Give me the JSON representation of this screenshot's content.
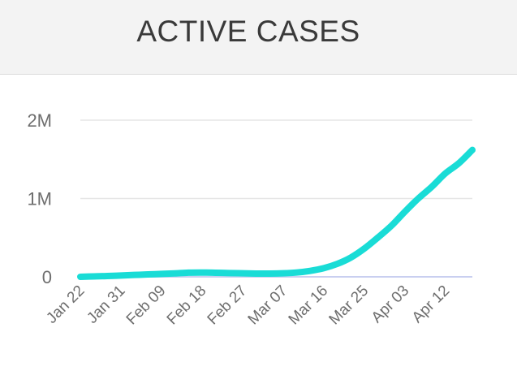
{
  "header": {
    "title": "ACTIVE CASES"
  },
  "chart_data": {
    "type": "line",
    "title": "ACTIVE CASES",
    "xlabel": "",
    "ylabel": "",
    "ylim": [
      0,
      2000000
    ],
    "grid": true,
    "legend": "none",
    "y_ticks": [
      {
        "value": 0,
        "label": "0"
      },
      {
        "value": 1000000,
        "label": "1M"
      },
      {
        "value": 2000000,
        "label": "2M"
      }
    ],
    "x_tick_labels": [
      "Jan 22",
      "Jan 31",
      "Feb 09",
      "Feb 18",
      "Feb 27",
      "Mar 07",
      "Mar 16",
      "Mar 25",
      "Apr 03",
      "Apr 12"
    ],
    "x": [
      "Jan 22",
      "Jan 25",
      "Jan 28",
      "Jan 31",
      "Feb 03",
      "Feb 06",
      "Feb 09",
      "Feb 12",
      "Feb 15",
      "Feb 18",
      "Feb 21",
      "Feb 24",
      "Feb 27",
      "Mar 01",
      "Mar 04",
      "Mar 07",
      "Mar 10",
      "Mar 13",
      "Mar 16",
      "Mar 19",
      "Mar 22",
      "Mar 25",
      "Mar 28",
      "Mar 31",
      "Apr 03",
      "Apr 06",
      "Apr 09",
      "Apr 12",
      "Apr 15",
      "Apr 18"
    ],
    "series": [
      {
        "color": "#19dcd6",
        "values": [
          600,
          5000,
          10000,
          17000,
          24000,
          31000,
          37000,
          44000,
          53000,
          55000,
          52000,
          48000,
          45000,
          42000,
          41000,
          45000,
          55000,
          76000,
          110000,
          165000,
          245000,
          360000,
          500000,
          650000,
          830000,
          1000000,
          1150000,
          1320000,
          1450000,
          1620000
        ]
      }
    ]
  }
}
